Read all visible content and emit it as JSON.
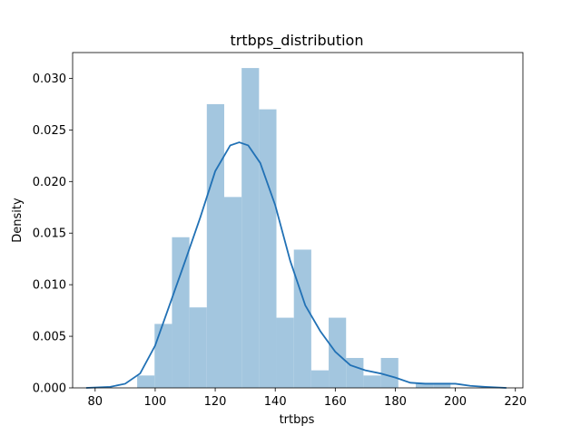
{
  "chart_data": {
    "type": "bar",
    "title": "trtbps_distribution",
    "xlabel": "trtbps",
    "ylabel": "Density",
    "xlim": [
      72.5,
      222.5
    ],
    "ylim": [
      0,
      0.0325
    ],
    "xticks": [
      80,
      100,
      120,
      140,
      160,
      180,
      200,
      220
    ],
    "yticks": [
      0.0,
      0.005,
      0.01,
      0.015,
      0.02,
      0.025,
      0.03
    ],
    "ytick_labels": [
      "0.000",
      "0.005",
      "0.010",
      "0.015",
      "0.020",
      "0.025",
      "0.030"
    ],
    "bin_width": 5.8,
    "bins": [
      {
        "x0": 94.0,
        "x1": 99.8,
        "density": 0.0012
      },
      {
        "x0": 99.8,
        "x1": 105.6,
        "density": 0.0062
      },
      {
        "x0": 105.6,
        "x1": 111.4,
        "density": 0.0146
      },
      {
        "x0": 111.4,
        "x1": 117.2,
        "density": 0.0078
      },
      {
        "x0": 117.2,
        "x1": 123.0,
        "density": 0.0275
      },
      {
        "x0": 123.0,
        "x1": 128.8,
        "density": 0.0185
      },
      {
        "x0": 128.8,
        "x1": 134.6,
        "density": 0.031
      },
      {
        "x0": 134.6,
        "x1": 140.4,
        "density": 0.027
      },
      {
        "x0": 140.4,
        "x1": 146.2,
        "density": 0.0068
      },
      {
        "x0": 146.2,
        "x1": 152.0,
        "density": 0.0134
      },
      {
        "x0": 152.0,
        "x1": 157.8,
        "density": 0.0017
      },
      {
        "x0": 157.8,
        "x1": 163.6,
        "density": 0.0068
      },
      {
        "x0": 163.6,
        "x1": 169.4,
        "density": 0.0029
      },
      {
        "x0": 169.4,
        "x1": 175.2,
        "density": 0.0012
      },
      {
        "x0": 175.2,
        "x1": 181.0,
        "density": 0.0029
      },
      {
        "x0": 186.8,
        "x1": 192.6,
        "density": 0.0005
      },
      {
        "x0": 192.6,
        "x1": 198.4,
        "density": 0.0005
      }
    ],
    "kde": {
      "x": [
        77,
        85,
        90,
        95,
        100,
        105,
        110,
        115,
        120,
        125,
        128,
        131,
        135,
        140,
        145,
        150,
        155,
        160,
        165,
        170,
        175,
        180,
        185,
        190,
        195,
        200,
        205,
        210,
        217
      ],
      "y": [
        0.0,
        0.0001,
        0.0004,
        0.0014,
        0.0041,
        0.0082,
        0.0123,
        0.0165,
        0.021,
        0.0235,
        0.0238,
        0.0235,
        0.0218,
        0.0177,
        0.0123,
        0.008,
        0.0055,
        0.0035,
        0.0022,
        0.0017,
        0.0014,
        0.001,
        0.0005,
        0.0004,
        0.0004,
        0.0004,
        0.0002,
        0.0001,
        0.0
      ]
    },
    "colors": {
      "bar": "#a3c6df",
      "kde": "#2171b5",
      "axis": "#000000"
    },
    "grid": false,
    "legend": "none"
  }
}
